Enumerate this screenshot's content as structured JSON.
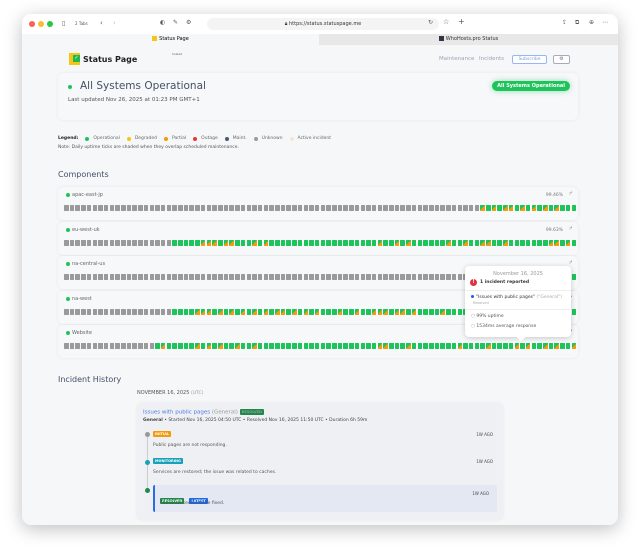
{
  "browser": {
    "tabs_count": "2 Tabs",
    "url": "https://status.statuspage.me",
    "tabs": [
      {
        "label": "Status Page"
      },
      {
        "label": "WhoHosts.pro Status"
      }
    ]
  },
  "header": {
    "logo_text": "Status Page",
    "logo_sup": "hosted",
    "nav": [
      "Maintenance",
      "Incidents"
    ],
    "subscribe": "Subscribe",
    "settings_icon": "gear-icon"
  },
  "status": {
    "title": "All Systems Operational",
    "last_updated": "Last updated Nov 26, 2025 at 01:23 PM GMT+1",
    "badge": "All Systems Operational"
  },
  "legend": {
    "label": "Legend:",
    "items": [
      {
        "label": "Operational",
        "color": "#1ec45b"
      },
      {
        "label": "Degraded",
        "color": "#f5c518"
      },
      {
        "label": "Partial",
        "color": "#f59a0c"
      },
      {
        "label": "Outage",
        "color": "#e53935"
      },
      {
        "label": "Maint.",
        "color": "#4a5a70"
      },
      {
        "label": "Unknown",
        "color": "#9a9a9a"
      },
      {
        "label": "Active incident",
        "color": "#f5e6d3"
      }
    ],
    "note": "Note: Daily uptime ticks are shaded when they overlap scheduled maintenance."
  },
  "components_title": "Components",
  "components": [
    {
      "name": "apac-east-jp",
      "uptime": "99.46%",
      "ticks": "uuuuuuuuuuuuuuuuuuuuuuuuuuuuuuuuuuuuuuuuuuuuuuuuuuuuuuuuuuuuuuuuuuuuuuuuupgpgppgpgpgpgpggg"
    },
    {
      "name": "eu-west-uk",
      "uptime": "99.63%",
      "ticks": "uuuuuuuuuuuuuuuuuuugggggpppgppgggpgpgggggggggggggggggggpggpgpggggggpggpggppggpgggggggppgpg"
    },
    {
      "name": "na-central-us",
      "uptime": "",
      "ticks": "uuuuuuuuuuuuuuuuuuuuuuuuuuuuuuuuuuuuuuuuuuuuuuuuuuuuuuuuuuuuuuuuuuuuuuuuuuuuuuuuuuuuuuuugg"
    },
    {
      "name": "na-west",
      "uptime": "",
      "ticks": "uuuuuuuuuuuuuuuuuuuggggpppgpgpgpgpgpgppgpgpgpgggpggpggpppgppgpggggpggggggpgggggggggggggggg"
    },
    {
      "name": "Website",
      "uptime": "",
      "ticks": "uuuuuuuuuuuuuuuugpgggggpgpgpggpggpgggggggggggggggggggggppgggpggggggggpggggpggggpgpggpgpggp"
    }
  ],
  "tooltip": {
    "date": "November 16, 2025",
    "count": "1 incident reported",
    "incident": "\"Issues with public pages\"",
    "incident_group": "(\"General\")",
    "incident_status": "Resolved",
    "uptime": "99% uptime",
    "response": "1534ms average response"
  },
  "history": {
    "title": "Incident History",
    "date": "NOVEMBER 16, 2025",
    "tz": "(UTC)",
    "incident": {
      "title": "Issues with public pages",
      "group": "(General)",
      "badge": "RESOLVED",
      "meta_group": "General",
      "meta": " • Started Nov 16, 2025 04:50 UTC • Resolved Nov 16, 2025 11:50 UTC • Duration 6h 59m",
      "updates": [
        {
          "tag": "INITIAL",
          "color": "#f59a0c",
          "dot": "#999999",
          "text": "Public pages are not responding.",
          "ago": "1W AGO"
        },
        {
          "tag": "MONITORING",
          "color": "#17a2b8",
          "dot": "#17a2b8",
          "text": "Services are restored; the issue was related to caches.",
          "ago": "1W AGO"
        },
        {
          "tag": "RESOLVED",
          "tag2": "LATEST",
          "color": "#1e8a4c",
          "dot": "#1e8a4c",
          "text": "The issue seems to be fixed.",
          "ago": "1W AGO"
        }
      ]
    }
  }
}
